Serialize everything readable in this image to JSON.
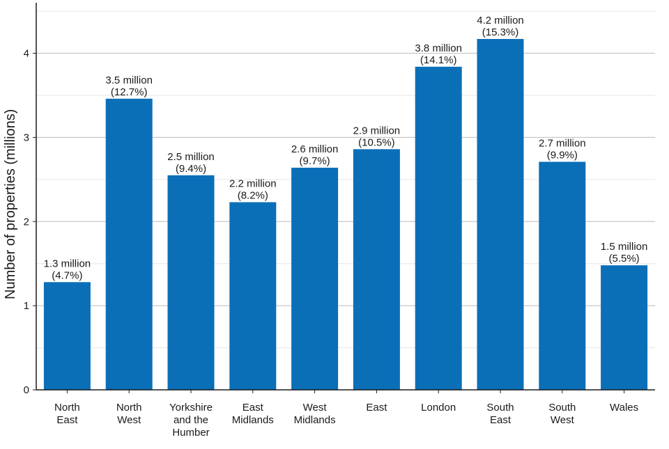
{
  "chart_data": {
    "type": "bar",
    "title": "",
    "xlabel": "",
    "ylabel": "Number of properties (millions)",
    "categories": [
      [
        "North",
        "East"
      ],
      [
        "North",
        "West"
      ],
      [
        "Yorkshire",
        "and the",
        "Humber"
      ],
      [
        "East",
        "Midlands"
      ],
      [
        "West",
        "Midlands"
      ],
      [
        "East"
      ],
      [
        "London"
      ],
      [
        "South",
        "East"
      ],
      [
        "South",
        "West"
      ],
      [
        "Wales"
      ]
    ],
    "values": [
      1.28,
      3.46,
      2.55,
      2.23,
      2.64,
      2.86,
      3.84,
      4.17,
      2.71,
      1.48
    ],
    "value_labels": [
      [
        "1.3 million",
        "(4.7%)"
      ],
      [
        "3.5 million",
        "(12.7%)"
      ],
      [
        "2.5 million",
        "(9.4%)"
      ],
      [
        "2.2 million",
        "(8.2%)"
      ],
      [
        "2.6 million",
        "(9.7%)"
      ],
      [
        "2.9 million",
        "(10.5%)"
      ],
      [
        "3.8 million",
        "(14.1%)"
      ],
      [
        "4.2 million",
        "(15.3%)"
      ],
      [
        "2.7 million",
        "(9.9%)"
      ],
      [
        "1.5 million",
        "(5.5%)"
      ]
    ],
    "yticks": [
      0,
      1,
      2,
      3,
      4
    ],
    "ylim": [
      0,
      4.6
    ],
    "grid": true,
    "colors": {
      "bar": "#0b6fb8",
      "grid_major": "#c8c8c8",
      "grid_minor": "#e6e6e6",
      "axis": "#1a1a1a"
    }
  }
}
